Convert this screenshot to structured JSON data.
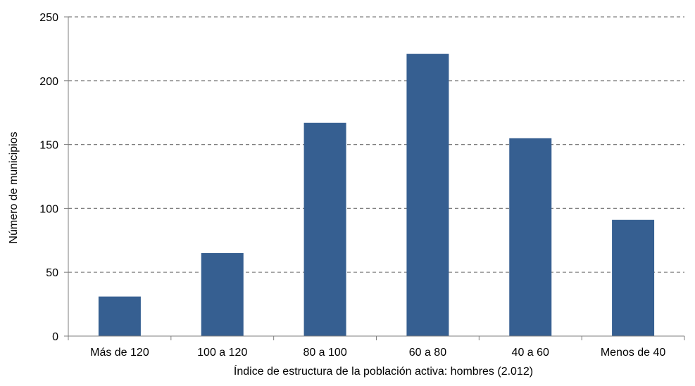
{
  "chart_data": {
    "type": "bar",
    "title": "",
    "xlabel": "Índice de estructura de la población activa:  hombres (2.012)",
    "ylabel": "Número de municipios",
    "categories": [
      "Más de 120",
      "100 a 120",
      "80 a 100",
      "60 a 80",
      "40 a 60",
      "Menos de 40"
    ],
    "values": [
      31,
      65,
      167,
      221,
      155,
      91
    ],
    "ylim": [
      0,
      250
    ],
    "yticks": [
      0,
      50,
      100,
      150,
      200,
      250
    ],
    "grid": "horizontal dashed",
    "legend": "none",
    "colors": {
      "bar": "#365f91",
      "grid": "#7f7f7f",
      "axis": "#7f7f7f",
      "text": "#000000"
    }
  }
}
